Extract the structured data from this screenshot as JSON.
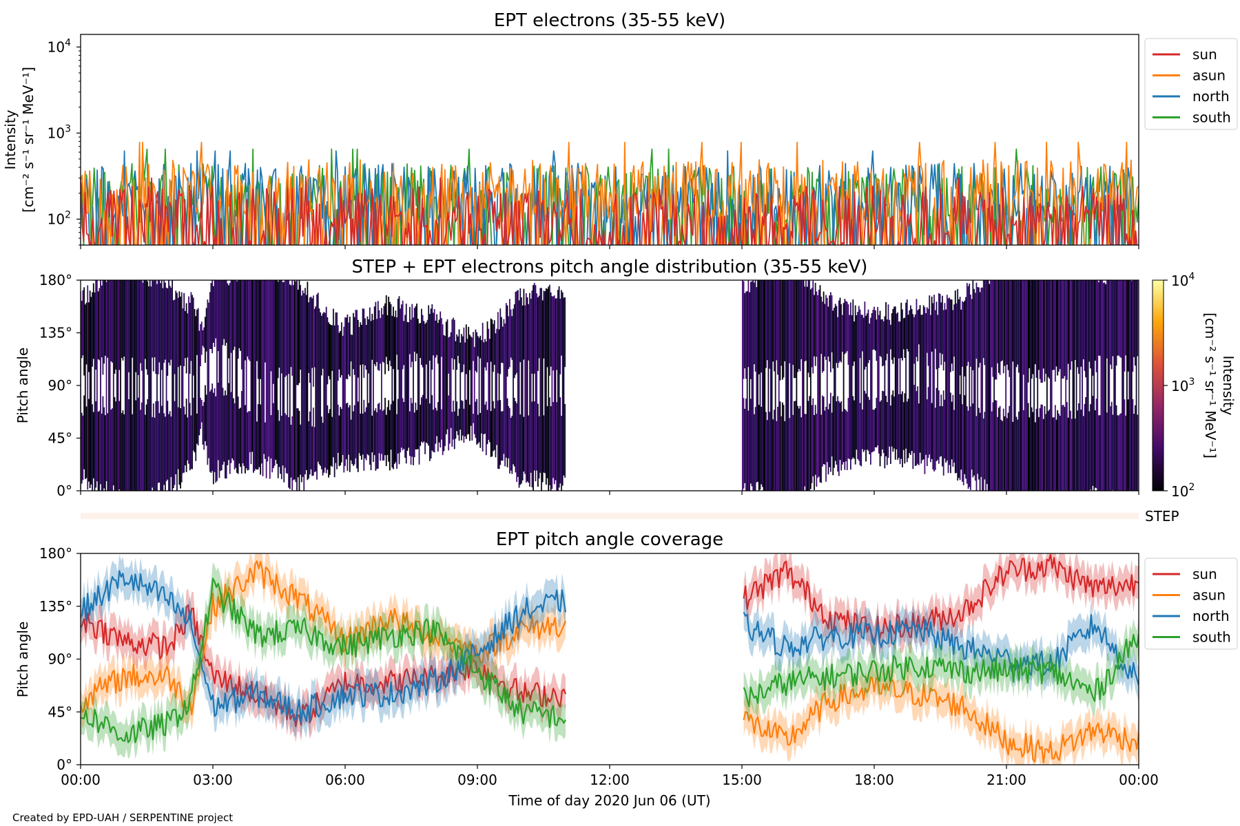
{
  "chart_data": [
    {
      "type": "line",
      "title": "EPT electrons (35-55 keV)",
      "ylabel_lines": [
        "Intensity",
        "[cm⁻² s⁻¹ sr⁻¹ MeV⁻¹]"
      ],
      "yscale": "log",
      "ylim": [
        50,
        14000
      ],
      "yticks": [
        {
          "value": 100,
          "base": "10",
          "exp": "2"
        },
        {
          "value": 1000,
          "base": "10",
          "exp": "3"
        },
        {
          "value": 10000,
          "base": "10",
          "exp": "4"
        }
      ],
      "x_range": [
        "00:00",
        "24:00"
      ],
      "legend_position": "upper-right-outside",
      "series": [
        {
          "name": "sun",
          "color": "#d62728",
          "typical": 110,
          "peak": 300
        },
        {
          "name": "asun",
          "color": "#ff7f0e",
          "typical": 220,
          "peak": 780
        },
        {
          "name": "north",
          "color": "#1f77b4",
          "typical": 200,
          "peak": 620
        },
        {
          "name": "south",
          "color": "#2ca02c",
          "typical": 200,
          "peak": 650
        }
      ]
    },
    {
      "type": "heatmap",
      "title": "STEP + EPT electrons pitch angle distribution (35-55 keV)",
      "ylabel": "Pitch angle",
      "ylim": [
        0,
        180
      ],
      "yticks": [
        "0°",
        "45°",
        "90°",
        "135°",
        "180°"
      ],
      "data_gap": [
        "11:00",
        "15:00"
      ],
      "colorbar": {
        "scale": "log",
        "range": [
          100,
          10000
        ],
        "label_lines": [
          "Intensity",
          "[cm⁻² s⁻¹ sr⁻¹ MeV⁻¹]"
        ],
        "ticks": [
          {
            "base": "10",
            "exp": "2"
          },
          {
            "base": "10",
            "exp": "3"
          },
          {
            "base": "10",
            "exp": "4"
          }
        ],
        "colors": [
          "#000004",
          "#420a68",
          "#932667",
          "#dd513a",
          "#fca50a",
          "#fcffa4"
        ]
      },
      "step_label": "STEP"
    },
    {
      "type": "line",
      "title": "EPT pitch angle coverage",
      "ylabel": "Pitch angle",
      "ylim": [
        0,
        180
      ],
      "yticks": [
        "0°",
        "45°",
        "90°",
        "135°",
        "180°"
      ],
      "xlabel": "Time of day 2020 Jun 06 (UT)",
      "xticks": [
        "00:00",
        "03:00",
        "06:00",
        "09:00",
        "12:00",
        "15:00",
        "18:00",
        "21:00",
        "00:00"
      ],
      "x_hours": [
        0,
        3,
        6,
        9,
        12,
        15,
        18,
        21,
        24
      ],
      "data_gap": [
        "11:00",
        "15:00"
      ],
      "legend_position": "upper-right-outside",
      "series": [
        {
          "name": "sun",
          "color": "#d62728",
          "hours": [
            0,
            1,
            2,
            2.5,
            3,
            4,
            5,
            6,
            7,
            8,
            9,
            10,
            11,
            15,
            16,
            17,
            18,
            19,
            20,
            21,
            22,
            23,
            24
          ],
          "values": [
            125,
            105,
            100,
            130,
            75,
            60,
            40,
            70,
            70,
            75,
            85,
            60,
            60,
            140,
            165,
            125,
            115,
            120,
            130,
            165,
            170,
            150,
            155
          ]
        },
        {
          "name": "asun",
          "color": "#ff7f0e",
          "hours": [
            0,
            1,
            2,
            2.5,
            3,
            4,
            5,
            6,
            7,
            8,
            9,
            10,
            11,
            15,
            16,
            17,
            18,
            19,
            20,
            21,
            22,
            23,
            24
          ],
          "values": [
            55,
            75,
            75,
            50,
            135,
            165,
            140,
            105,
            125,
            110,
            95,
            115,
            120,
            40,
            20,
            55,
            65,
            60,
            50,
            20,
            10,
            30,
            20
          ]
        },
        {
          "name": "north",
          "color": "#1f77b4",
          "hours": [
            0,
            1,
            2,
            2.5,
            3,
            4,
            5,
            6,
            7,
            8,
            9,
            10,
            11,
            15,
            16,
            17,
            18,
            19,
            20,
            21,
            22,
            23,
            24
          ],
          "values": [
            130,
            160,
            140,
            120,
            50,
            60,
            45,
            60,
            60,
            70,
            95,
            130,
            140,
            120,
            100,
            110,
            110,
            115,
            100,
            90,
            85,
            120,
            70
          ]
        },
        {
          "name": "south",
          "color": "#2ca02c",
          "hours": [
            0,
            1,
            2,
            2.5,
            3,
            4,
            5,
            6,
            7,
            8,
            9,
            10,
            11,
            15,
            16,
            17,
            18,
            19,
            20,
            21,
            22,
            23,
            24
          ],
          "values": [
            45,
            25,
            35,
            55,
            150,
            110,
            115,
            100,
            110,
            115,
            80,
            45,
            40,
            55,
            70,
            75,
            80,
            85,
            80,
            80,
            80,
            60,
            110
          ]
        }
      ]
    }
  ],
  "footer": {
    "credit": "Created by EPD-UAH / SERPENTINE project"
  }
}
